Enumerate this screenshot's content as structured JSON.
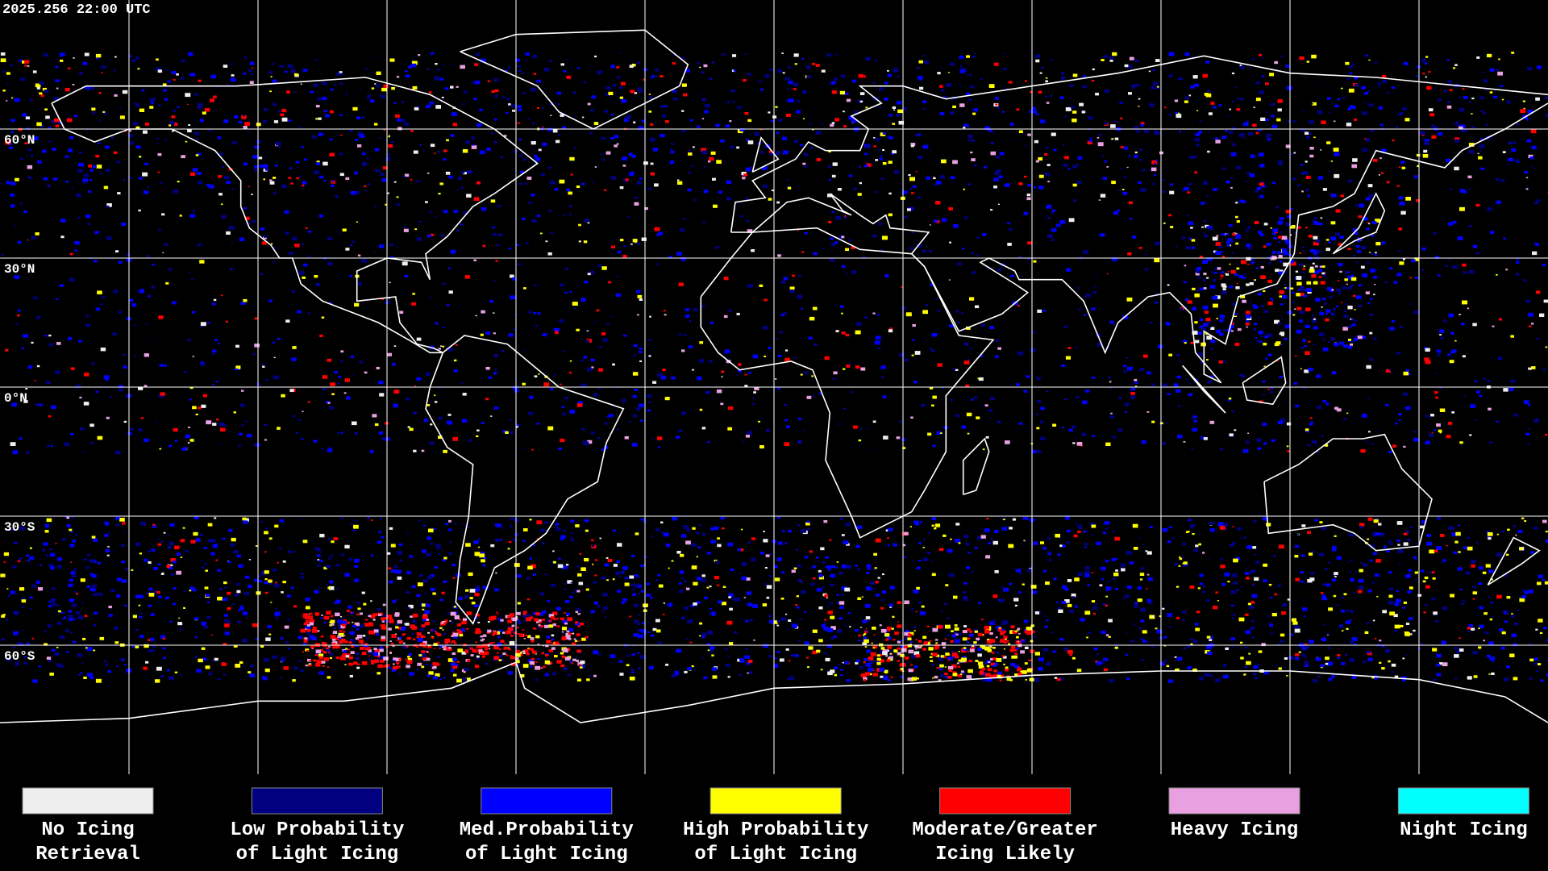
{
  "timestamp": "2025.256 22:00 UTC",
  "latitude_labels": [
    "60°N",
    "30°N",
    "0°N",
    "30°S",
    "60°S"
  ],
  "legend": [
    {
      "lines": [
        "No Icing",
        "Retrieval"
      ],
      "color": "#eeeeee"
    },
    {
      "lines": [
        "Low Probability",
        "of Light Icing"
      ],
      "color": "#000080"
    },
    {
      "lines": [
        "Med.Probability",
        "of Light Icing"
      ],
      "color": "#0000ff"
    },
    {
      "lines": [
        "High Probability",
        "of Light Icing"
      ],
      "color": "#ffff00"
    },
    {
      "lines": [
        "Moderate/Greater",
        "Icing Likely"
      ],
      "color": "#ff0000"
    },
    {
      "lines": [
        "Heavy Icing"
      ],
      "color": "#e8a0e0"
    },
    {
      "lines": [
        "Night Icing"
      ],
      "color": "#00ffff"
    }
  ]
}
